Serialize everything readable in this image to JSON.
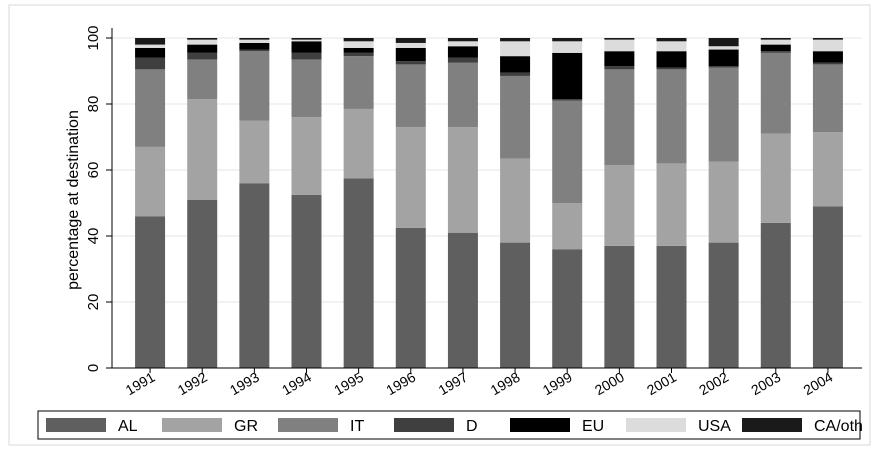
{
  "chart_data": {
    "type": "bar",
    "stacked": true,
    "title": "",
    "xlabel": "",
    "ylabel": "percentage at destination",
    "ylim": [
      0,
      100
    ],
    "yticks": [
      0,
      20,
      40,
      60,
      80,
      100
    ],
    "grid": true,
    "legend_position": "bottom",
    "categories": [
      "1991",
      "1992",
      "1993",
      "1994",
      "1995",
      "1996",
      "1997",
      "1998",
      "1999",
      "2000",
      "2001",
      "2002",
      "2003",
      "2004"
    ],
    "series": [
      {
        "name": "AL",
        "color": "#5f5f5f",
        "values": [
          46,
          51,
          56,
          52.5,
          57.5,
          42.5,
          41,
          38,
          36,
          37,
          37,
          38,
          44,
          49
        ]
      },
      {
        "name": "GR",
        "color": "#a3a3a3",
        "values": [
          21,
          30.5,
          19,
          23.5,
          21,
          30.5,
          32,
          25.5,
          14,
          24.5,
          25,
          24.5,
          27,
          22.5
        ]
      },
      {
        "name": "IT",
        "color": "#808080",
        "values": [
          23.5,
          12,
          21,
          17.5,
          16,
          19,
          19.5,
          25,
          31,
          29,
          28.5,
          28.5,
          24.5,
          20.5
        ]
      },
      {
        "name": "D",
        "color": "#3f3f3f",
        "values": [
          3.5,
          2,
          0.5,
          2,
          1,
          1,
          1.5,
          1,
          0.5,
          1,
          0.5,
          0.5,
          0.5,
          0.5
        ]
      },
      {
        "name": "EU",
        "color": "#000000",
        "values": [
          3,
          2.5,
          2,
          3.5,
          1.5,
          4,
          3.5,
          5,
          14,
          4.5,
          5,
          5,
          2,
          3.5
        ]
      },
      {
        "name": "USA",
        "color": "#dcdcdc",
        "values": [
          1,
          1.5,
          1,
          0.5,
          2,
          1.5,
          1.5,
          4.5,
          3.5,
          3.5,
          3,
          1,
          1.5,
          3.5
        ]
      },
      {
        "name": "CA/oth",
        "color": "#1a1a1a",
        "values": [
          2,
          0.5,
          0.5,
          0.5,
          1,
          1.5,
          1,
          1,
          1,
          0.5,
          1,
          2.5,
          0.5,
          0.5
        ]
      }
    ]
  }
}
